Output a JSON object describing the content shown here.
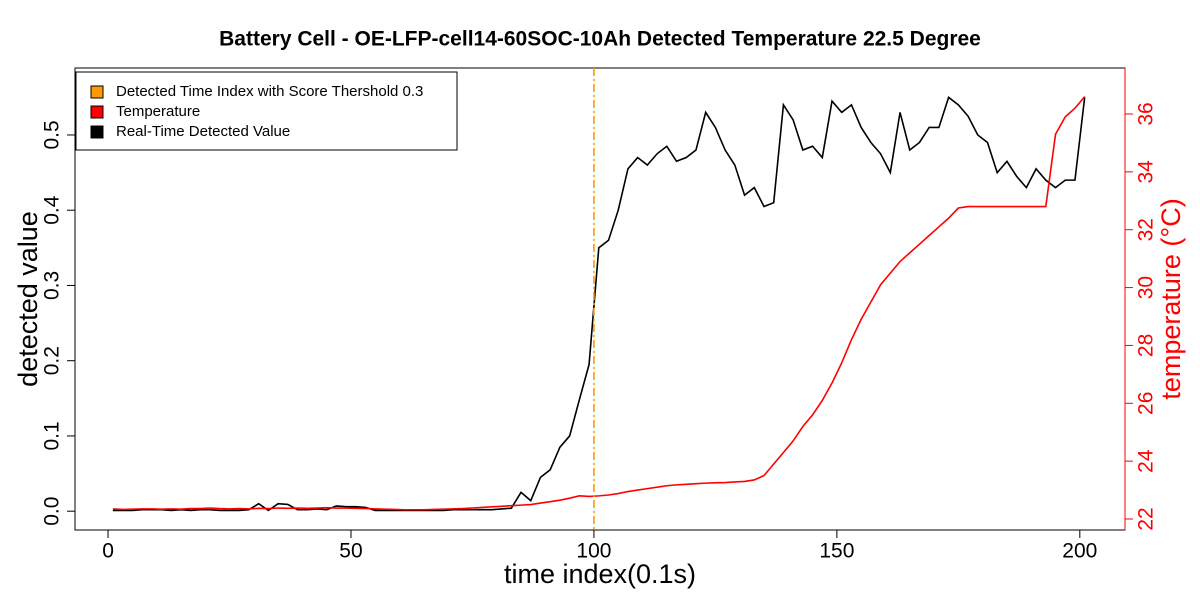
{
  "chart_data": {
    "type": "line",
    "title": "Battery Cell - OE-LFP-cell14-60SOC-10Ah Detected Temperature 22.5 Degree",
    "xlabel": "time index(0.1s)",
    "ylabel": "detected value",
    "y2label": "temperature (°C)",
    "x": [
      1,
      3,
      5,
      7,
      9,
      11,
      13,
      15,
      17,
      19,
      21,
      23,
      25,
      27,
      29,
      31,
      33,
      35,
      37,
      39,
      41,
      43,
      45,
      47,
      49,
      51,
      53,
      55,
      57,
      59,
      61,
      63,
      65,
      67,
      69,
      71,
      73,
      75,
      77,
      79,
      81,
      83,
      85,
      87,
      89,
      91,
      93,
      95,
      97,
      99,
      101,
      103,
      105,
      107,
      109,
      111,
      113,
      115,
      117,
      119,
      121,
      123,
      125,
      127,
      129,
      131,
      133,
      135,
      137,
      139,
      141,
      143,
      145,
      147,
      149,
      151,
      153,
      155,
      157,
      159,
      161,
      163,
      165,
      167,
      169,
      171,
      173,
      175,
      177,
      179,
      181,
      183,
      185,
      187,
      189,
      191,
      193,
      195,
      197,
      199,
      201
    ],
    "series": [
      {
        "name": "Real-Time Detected Value",
        "color": "#000000",
        "axis": "y",
        "values": [
          0.001,
          0.001,
          0.001,
          0.002,
          0.002,
          0.002,
          0.001,
          0.002,
          0.001,
          0.002,
          0.002,
          0.001,
          0.001,
          0.001,
          0.002,
          0.01,
          0.001,
          0.01,
          0.009,
          0.002,
          0.002,
          0.003,
          0.002,
          0.007,
          0.006,
          0.006,
          0.005,
          0.001,
          0.001,
          0.001,
          0.001,
          0.001,
          0.001,
          0.001,
          0.001,
          0.002,
          0.002,
          0.002,
          0.002,
          0.002,
          0.003,
          0.004,
          0.025,
          0.014,
          0.045,
          0.055,
          0.085,
          0.1,
          0.148,
          0.195,
          0.35,
          0.36,
          0.4,
          0.455,
          0.47,
          0.46,
          0.475,
          0.485,
          0.465,
          0.47,
          0.48,
          0.53,
          0.51,
          0.48,
          0.46,
          0.42,
          0.43,
          0.405,
          0.41,
          0.54,
          0.52,
          0.48,
          0.485,
          0.47,
          0.545,
          0.53,
          0.54,
          0.51,
          0.49,
          0.475,
          0.45,
          0.53,
          0.48,
          0.49,
          0.51,
          0.51,
          0.55,
          0.54,
          0.525,
          0.5,
          0.49,
          0.45,
          0.465,
          0.445,
          0.43,
          0.455,
          0.44,
          0.43,
          0.44,
          0.44,
          0.55
        ]
      },
      {
        "name": "Temperature",
        "color": "#ff0000",
        "axis": "y2",
        "values": [
          22.35,
          22.33,
          22.34,
          22.35,
          22.35,
          22.34,
          22.35,
          22.34,
          22.36,
          22.36,
          22.38,
          22.36,
          22.35,
          22.36,
          22.35,
          22.37,
          22.36,
          22.38,
          22.37,
          22.38,
          22.37,
          22.38,
          22.39,
          22.38,
          22.38,
          22.37,
          22.36,
          22.35,
          22.34,
          22.33,
          22.32,
          22.32,
          22.32,
          22.33,
          22.34,
          22.35,
          22.36,
          22.38,
          22.4,
          22.42,
          22.44,
          22.46,
          22.48,
          22.5,
          22.55,
          22.6,
          22.65,
          22.72,
          22.8,
          22.78,
          22.8,
          22.83,
          22.88,
          22.95,
          23.0,
          23.05,
          23.1,
          23.15,
          23.18,
          23.2,
          23.22,
          23.24,
          23.25,
          23.26,
          23.28,
          23.3,
          23.35,
          23.5,
          23.9,
          24.3,
          24.7,
          25.2,
          25.6,
          26.1,
          26.7,
          27.4,
          28.2,
          28.9,
          29.5,
          30.1,
          30.5,
          30.9,
          31.2,
          31.5,
          31.8,
          32.1,
          32.4,
          32.75,
          32.8,
          32.8,
          32.8,
          32.8,
          32.8,
          32.8,
          32.8,
          32.8,
          32.8,
          35.3,
          35.9,
          36.2,
          36.6
        ]
      }
    ],
    "vline": {
      "name": "Detected Time Index with Score Thershold 0.3",
      "value": 100,
      "color": "#ff9900"
    },
    "xlim": [
      -6.8,
      209.3
    ],
    "xticks": [
      0,
      50,
      100,
      150,
      200
    ],
    "ylim": [
      -0.025,
      0.589
    ],
    "yticks": [
      {
        "value": 0,
        "label": "0.0"
      },
      0.1,
      0.2,
      0.3,
      0.4,
      0.5
    ],
    "y2lim": [
      21.62,
      37.59
    ],
    "y2ticks": [
      22,
      24,
      26,
      28,
      30,
      32,
      34,
      36
    ],
    "legend": "top-left"
  }
}
